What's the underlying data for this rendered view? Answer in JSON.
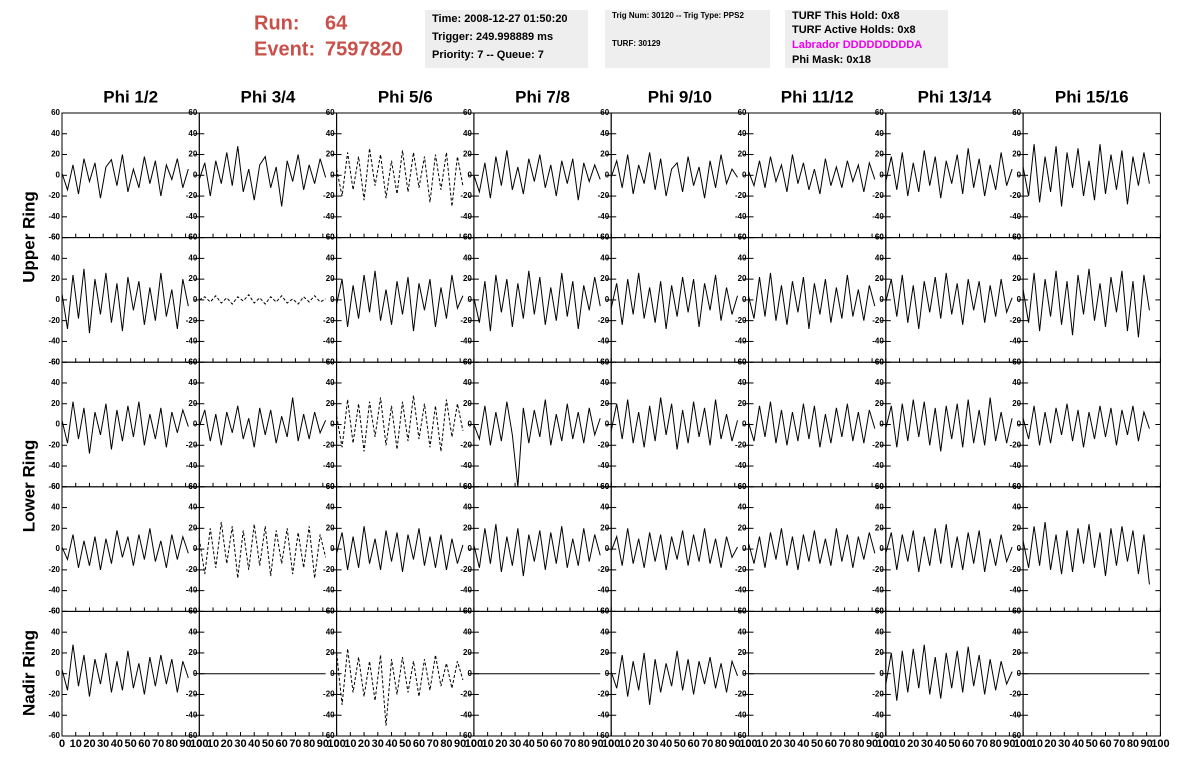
{
  "header": {
    "run_label": "Run:",
    "run": "64",
    "event_label": "Event:",
    "event": "7597820",
    "box1": [
      "Time: 2008-12-27 01:50:20",
      "Trigger: 249.998889 ms",
      "Priority: 7 -- Queue: 7"
    ],
    "box2": [
      "Trig Num: 30120 -- Trig Type: PPS2",
      "TURF: 30129"
    ],
    "box3": [
      "TURF This Hold: 0x8",
      "TURF Active Holds: 0x8",
      "Labrador DDDDDDDDDA",
      "Phi Mask: 0x18"
    ]
  },
  "columns": [
    "Phi 1/2",
    "Phi 3/4",
    "Phi 5/6",
    "Phi 7/8",
    "Phi 9/10",
    "Phi 11/12",
    "Phi 13/14",
    "Phi 15/16"
  ],
  "rows": [
    "Upper Ring",
    "Lower Ring",
    "Nadir Ring"
  ],
  "axes": {
    "xlim": [
      0,
      100
    ],
    "xticks": [
      0,
      10,
      20,
      30,
      40,
      50,
      60,
      70,
      80,
      90,
      100
    ],
    "ylim": [
      -60,
      60
    ],
    "yticks": [
      60,
      40,
      20,
      0,
      -20,
      -40,
      -60
    ]
  },
  "sample_x": [
    0,
    4,
    8,
    12,
    16,
    20,
    24,
    28,
    32,
    36,
    40,
    44,
    48,
    52,
    56,
    60,
    64,
    68,
    72,
    76,
    80,
    84,
    88,
    92
  ],
  "panels": [
    [
      {
        "line_style": "solid",
        "values": [
          2,
          -14,
          10,
          -18,
          16,
          -6,
          12,
          -22,
          8,
          15,
          -10,
          20,
          -16,
          6,
          -12,
          18,
          -8,
          14,
          -20,
          10,
          -4,
          16,
          -12,
          6
        ]
      },
      {
        "line_style": "solid",
        "values": [
          -4,
          12,
          -20,
          14,
          -8,
          22,
          -10,
          28,
          -16,
          6,
          -24,
          10,
          18,
          -12,
          8,
          -30,
          14,
          -6,
          20,
          -14,
          10,
          -8,
          16,
          -2
        ]
      },
      {
        "line_style": "dashed",
        "values": [
          6,
          -20,
          22,
          -14,
          18,
          -24,
          26,
          -10,
          20,
          -22,
          14,
          -18,
          24,
          -16,
          22,
          -12,
          18,
          -26,
          20,
          -14,
          22,
          -30,
          18,
          -10
        ]
      },
      {
        "line_style": "solid",
        "values": [
          0,
          -16,
          12,
          -22,
          18,
          -10,
          24,
          -14,
          8,
          -18,
          16,
          -6,
          20,
          -12,
          10,
          -20,
          14,
          -8,
          16,
          -24,
          12,
          -6,
          10,
          -4
        ]
      },
      {
        "line_style": "solid",
        "values": [
          -2,
          14,
          -12,
          20,
          -18,
          10,
          -8,
          22,
          -14,
          16,
          -20,
          6,
          12,
          -16,
          18,
          -10,
          8,
          -22,
          14,
          -12,
          20,
          -8,
          6,
          -2
        ]
      },
      {
        "line_style": "solid",
        "values": [
          4,
          -10,
          14,
          -12,
          18,
          -6,
          10,
          -16,
          20,
          -8,
          12,
          -14,
          6,
          -18,
          16,
          -10,
          8,
          -12,
          14,
          -6,
          10,
          -16,
          12,
          -4
        ]
      },
      {
        "line_style": "solid",
        "values": [
          -6,
          18,
          -14,
          22,
          -20,
          12,
          -16,
          24,
          -10,
          18,
          -22,
          14,
          -8,
          20,
          -18,
          26,
          -12,
          16,
          -20,
          10,
          -14,
          22,
          -10,
          6
        ]
      },
      {
        "line_style": "solid",
        "values": [
          8,
          -20,
          30,
          -26,
          18,
          -16,
          28,
          -30,
          22,
          -12,
          26,
          -20,
          14,
          -24,
          30,
          -18,
          20,
          -14,
          24,
          -28,
          18,
          -10,
          22,
          -8
        ]
      }
    ],
    [
      {
        "line_style": "solid",
        "values": [
          6,
          -28,
          24,
          -18,
          30,
          -32,
          20,
          -14,
          26,
          -22,
          16,
          -30,
          22,
          -10,
          18,
          -24,
          12,
          -20,
          26,
          -16,
          10,
          -28,
          20,
          -6
        ]
      },
      {
        "line_style": "dashed",
        "values": [
          0,
          3,
          -2,
          4,
          -3,
          2,
          -4,
          3,
          -1,
          5,
          -3,
          2,
          -4,
          3,
          -2,
          4,
          -3,
          1,
          -4,
          3,
          -2,
          4,
          -2,
          1
        ]
      },
      {
        "line_style": "solid",
        "values": [
          -4,
          20,
          -26,
          14,
          -18,
          24,
          -12,
          28,
          -20,
          10,
          -24,
          18,
          -14,
          22,
          -30,
          16,
          -10,
          20,
          -26,
          12,
          -18,
          24,
          -8,
          4
        ]
      },
      {
        "line_style": "solid",
        "values": [
          2,
          -22,
          18,
          -30,
          24,
          -12,
          20,
          -26,
          16,
          -18,
          28,
          -14,
          22,
          -24,
          12,
          -20,
          26,
          -16,
          18,
          -28,
          14,
          -10,
          22,
          -6
        ]
      },
      {
        "line_style": "solid",
        "values": [
          -8,
          16,
          -24,
          20,
          -14,
          26,
          -18,
          12,
          -22,
          18,
          -28,
          14,
          -16,
          22,
          -12,
          20,
          -26,
          16,
          -10,
          24,
          -20,
          12,
          -14,
          4
        ]
      },
      {
        "line_style": "solid",
        "values": [
          4,
          -18,
          22,
          -16,
          26,
          -20,
          14,
          -24,
          18,
          -12,
          22,
          -28,
          16,
          -14,
          20,
          -22,
          12,
          -18,
          24,
          -16,
          10,
          -20,
          14,
          -6
        ]
      },
      {
        "line_style": "solid",
        "values": [
          -2,
          20,
          -16,
          24,
          -22,
          14,
          -28,
          18,
          -12,
          22,
          -18,
          26,
          -14,
          16,
          -24,
          20,
          -10,
          18,
          -22,
          14,
          -16,
          20,
          -12,
          2
        ]
      },
      {
        "line_style": "solid",
        "values": [
          10,
          -22,
          26,
          -30,
          20,
          -16,
          28,
          -24,
          18,
          -34,
          24,
          -14,
          30,
          -20,
          16,
          -26,
          22,
          -12,
          28,
          -30,
          18,
          -36,
          24,
          -10
        ]
      }
    ],
    [
      {
        "line_style": "solid",
        "values": [
          4,
          -18,
          22,
          -14,
          16,
          -28,
          12,
          -10,
          20,
          -24,
          14,
          -16,
          18,
          -12,
          22,
          -20,
          10,
          -14,
          16,
          -22,
          12,
          -8,
          14,
          -2
        ]
      },
      {
        "line_style": "solid",
        "values": [
          -2,
          14,
          -16,
          10,
          -20,
          12,
          -8,
          18,
          -14,
          6,
          -22,
          16,
          -10,
          14,
          -18,
          8,
          -12,
          26,
          -16,
          10,
          -14,
          12,
          -8,
          4
        ]
      },
      {
        "line_style": "dashed",
        "values": [
          8,
          -22,
          24,
          -18,
          20,
          -26,
          22,
          -12,
          26,
          -20,
          18,
          -24,
          22,
          -16,
          28,
          -14,
          20,
          -22,
          18,
          -26,
          24,
          -12,
          20,
          -6
        ]
      },
      {
        "line_style": "solid",
        "values": [
          0,
          -14,
          18,
          -20,
          12,
          -16,
          22,
          -10,
          -60,
          16,
          -18,
          14,
          -12,
          24,
          -20,
          10,
          -16,
          20,
          -14,
          12,
          -18,
          16,
          -10,
          6
        ]
      },
      {
        "line_style": "solid",
        "values": [
          -6,
          20,
          -14,
          24,
          -18,
          12,
          -22,
          18,
          -16,
          26,
          -10,
          20,
          -24,
          14,
          -18,
          22,
          -12,
          16,
          -20,
          24,
          -14,
          10,
          -16,
          4
        ]
      },
      {
        "line_style": "solid",
        "values": [
          2,
          -16,
          18,
          -12,
          22,
          -18,
          14,
          -20,
          12,
          -16,
          20,
          -14,
          18,
          -22,
          10,
          -18,
          16,
          -12,
          20,
          -16,
          12,
          -18,
          14,
          -4
        ]
      },
      {
        "line_style": "solid",
        "values": [
          -4,
          18,
          -22,
          20,
          -16,
          24,
          -12,
          22,
          -20,
          16,
          -26,
          18,
          -14,
          20,
          -22,
          24,
          -18,
          14,
          -20,
          26,
          -16,
          12,
          -18,
          6
        ]
      },
      {
        "line_style": "solid",
        "values": [
          6,
          -14,
          18,
          -20,
          12,
          -18,
          16,
          -10,
          20,
          -16,
          14,
          -22,
          12,
          -14,
          18,
          -12,
          16,
          -20,
          14,
          -10,
          18,
          -16,
          12,
          -4
        ]
      }
    ],
    [
      {
        "line_style": "solid",
        "values": [
          2,
          -10,
          14,
          -18,
          8,
          -16,
          12,
          -20,
          10,
          -14,
          18,
          -8,
          12,
          -16,
          14,
          -10,
          20,
          -12,
          8,
          -18,
          14,
          -10,
          12,
          -4
        ]
      },
      {
        "line_style": "dashed",
        "values": [
          10,
          -24,
          20,
          -18,
          26,
          -14,
          22,
          -28,
          18,
          -20,
          24,
          -16,
          22,
          -26,
          18,
          -14,
          20,
          -24,
          16,
          -18,
          22,
          -28,
          14,
          -8
        ]
      },
      {
        "line_style": "solid",
        "values": [
          -4,
          16,
          -20,
          12,
          -18,
          22,
          -14,
          10,
          -20,
          18,
          -12,
          16,
          -22,
          14,
          -10,
          20,
          -16,
          12,
          -18,
          14,
          -20,
          10,
          -14,
          4
        ]
      },
      {
        "line_style": "solid",
        "values": [
          4,
          -18,
          20,
          -14,
          24,
          -22,
          12,
          -16,
          20,
          -26,
          14,
          -12,
          18,
          -20,
          16,
          -14,
          22,
          -18,
          10,
          -16,
          20,
          -12,
          14,
          -6
        ]
      },
      {
        "line_style": "solid",
        "values": [
          -2,
          12,
          -16,
          20,
          -14,
          10,
          -18,
          16,
          -12,
          14,
          -20,
          12,
          -10,
          18,
          -16,
          14,
          -12,
          20,
          -14,
          10,
          -18,
          12,
          -8,
          2
        ]
      },
      {
        "line_style": "solid",
        "values": [
          6,
          -14,
          12,
          -18,
          16,
          -10,
          20,
          -16,
          12,
          -20,
          14,
          -12,
          18,
          -14,
          10,
          -16,
          20,
          -12,
          14,
          -18,
          12,
          -10,
          16,
          -4
        ]
      },
      {
        "line_style": "solid",
        "values": [
          -4,
          16,
          -20,
          14,
          -12,
          18,
          -22,
          12,
          -16,
          20,
          -14,
          24,
          -18,
          12,
          -20,
          16,
          -14,
          18,
          -22,
          10,
          -16,
          14,
          -12,
          2
        ]
      },
      {
        "line_style": "solid",
        "values": [
          8,
          -18,
          22,
          -16,
          26,
          -20,
          14,
          -24,
          18,
          -22,
          20,
          -14,
          24,
          -18,
          16,
          -26,
          20,
          -16,
          22,
          -12,
          18,
          -24,
          14,
          -34
        ]
      }
    ],
    [
      {
        "line_style": "solid",
        "values": [
          4,
          -16,
          28,
          -12,
          18,
          -22,
          14,
          -10,
          20,
          -18,
          12,
          -16,
          22,
          -14,
          10,
          -20,
          16,
          -12,
          18,
          -10,
          14,
          -18,
          12,
          -4
        ]
      },
      {
        "line_style": "solid",
        "values": [
          0,
          0,
          0,
          0,
          0,
          0,
          0,
          0,
          0,
          0,
          0,
          0,
          0,
          0,
          0,
          0,
          0,
          0,
          0,
          0,
          0,
          0,
          0,
          0
        ]
      },
      {
        "line_style": "dashed",
        "values": [
          20,
          -30,
          24,
          -18,
          16,
          -22,
          12,
          -26,
          18,
          -50,
          14,
          -20,
          16,
          -18,
          12,
          -22,
          14,
          -16,
          18,
          -12,
          10,
          -14,
          12,
          -6
        ]
      },
      {
        "line_style": "solid",
        "values": [
          0,
          0,
          0,
          0,
          0,
          0,
          0,
          0,
          0,
          0,
          0,
          0,
          0,
          0,
          0,
          0,
          0,
          0,
          0,
          0,
          0,
          0,
          0,
          0
        ]
      },
      {
        "line_style": "solid",
        "values": [
          2,
          -14,
          18,
          -22,
          12,
          -16,
          20,
          -30,
          14,
          -18,
          10,
          -12,
          22,
          -16,
          14,
          -20,
          12,
          -10,
          16,
          -14,
          10,
          -18,
          12,
          -2
        ]
      },
      {
        "line_style": "solid",
        "values": [
          0,
          0,
          0,
          0,
          0,
          0,
          0,
          0,
          0,
          0,
          0,
          0,
          0,
          0,
          0,
          0,
          0,
          0,
          0,
          0,
          0,
          0,
          0,
          0
        ]
      },
      {
        "line_style": "solid",
        "values": [
          -10,
          20,
          -26,
          22,
          -18,
          24,
          -14,
          28,
          -20,
          16,
          -24,
          20,
          -14,
          22,
          -18,
          26,
          -12,
          18,
          -20,
          14,
          -16,
          12,
          -10,
          2
        ]
      },
      {
        "line_style": "solid",
        "values": [
          0,
          0,
          0,
          0,
          0,
          0,
          0,
          0,
          0,
          0,
          0,
          0,
          0,
          0,
          0,
          0,
          0,
          0,
          0,
          0,
          0,
          0,
          0,
          0
        ]
      }
    ]
  ]
}
